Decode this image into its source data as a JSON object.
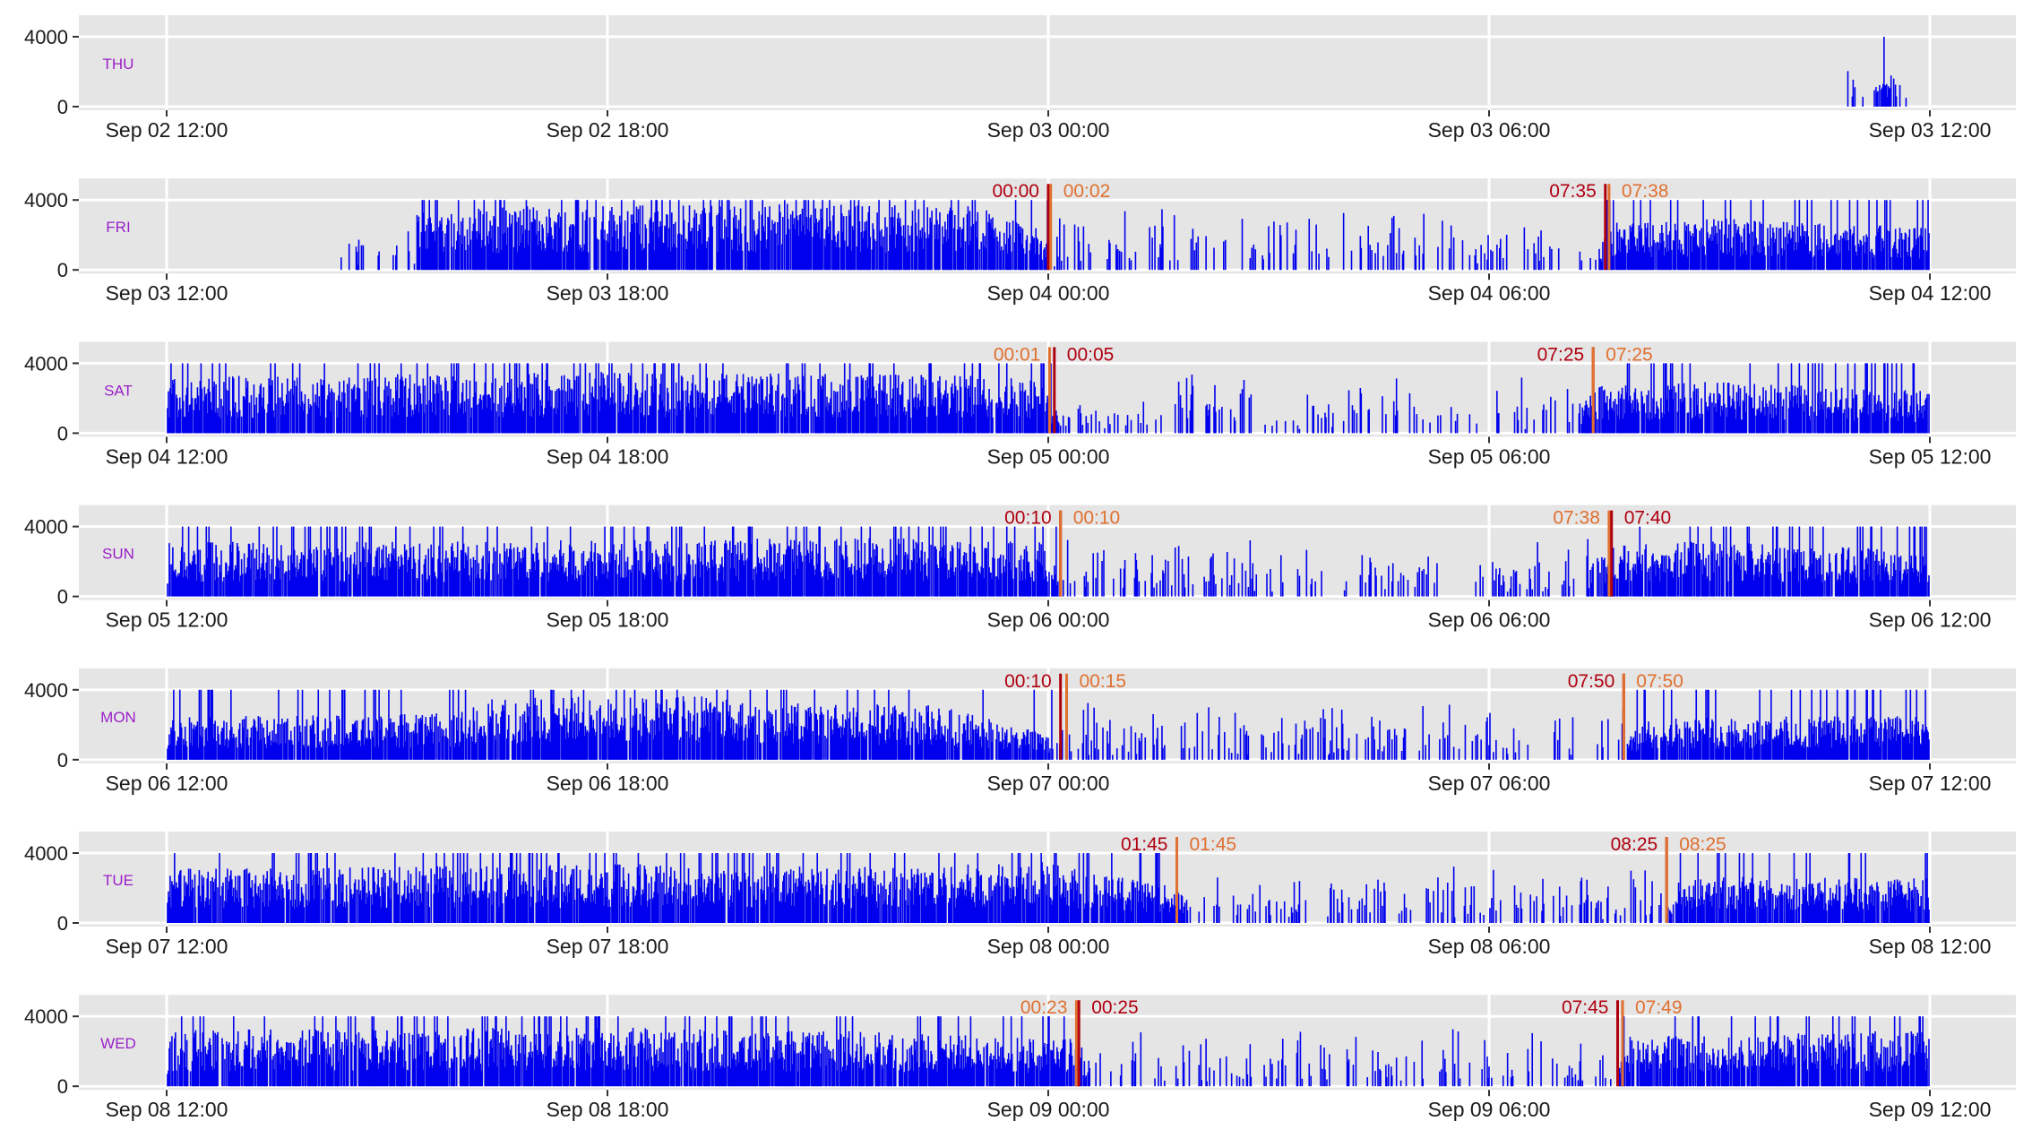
{
  "colors": {
    "bars": "#0000ee",
    "panel_bg": "#e5e5e5",
    "grid": "#ffffff",
    "day_label": "#9a1fc8",
    "marker_dark": "#b00010",
    "marker_light": "#e07030",
    "axis_text": "#1a1a1a"
  },
  "chart_data": {
    "type": "bar",
    "layout": "stacked small multiples, one panel per day, each panel spans 12:00 to 12:00 next day",
    "grid": true,
    "ylim": [
      0,
      4000
    ],
    "y_ticks": [
      0,
      4000
    ],
    "panels": [
      {
        "day": "THU",
        "x_ticks": [
          "Sep 02 12:00",
          "Sep 02 18:00",
          "Sep 03 00:00",
          "Sep 03 06:00",
          "Sep 03 12:00"
        ],
        "activity_profile": [
          [
            22.8,
            0
          ],
          [
            22.85,
            900
          ],
          [
            22.9,
            0
          ],
          [
            23.45,
            1600
          ],
          [
            23.5,
            0
          ],
          [
            23.5,
            1300
          ],
          [
            23.7,
            0
          ]
        ],
        "markers": []
      },
      {
        "day": "FRI",
        "x_ticks": [
          "Sep 03 12:00",
          "Sep 03 18:00",
          "Sep 04 00:00",
          "Sep 04 06:00",
          "Sep 04 12:00"
        ],
        "activity_profile": [
          [
            0,
            0
          ],
          [
            2.3,
            0
          ],
          [
            2.3,
            200
          ],
          [
            2.8,
            300
          ],
          [
            3.4,
            300
          ],
          [
            3.4,
            2600
          ],
          [
            6,
            2800
          ],
          [
            9,
            2800
          ],
          [
            10.8,
            2800
          ],
          [
            11.7,
            2300
          ],
          [
            12.1,
            700
          ],
          [
            16,
            500
          ],
          [
            19.4,
            500
          ],
          [
            19.7,
            2000
          ],
          [
            21,
            2200
          ],
          [
            24,
            1800
          ]
        ],
        "markers": [
          {
            "label": "00:00",
            "hour": 12.0,
            "color": "dark",
            "label_side": "left"
          },
          {
            "label": "00:02",
            "hour": 12.033,
            "color": "light",
            "label_side": "right"
          },
          {
            "label": "07:35",
            "hour": 19.583,
            "color": "dark",
            "label_side": "left"
          },
          {
            "label": "07:38",
            "hour": 19.633,
            "color": "light",
            "label_side": "right"
          }
        ]
      },
      {
        "day": "SAT",
        "x_ticks": [
          "Sep 04 12:00",
          "Sep 04 18:00",
          "Sep 05 00:00",
          "Sep 05 06:00",
          "Sep 05 12:00"
        ],
        "activity_profile": [
          [
            0,
            0
          ],
          [
            0.02,
            2400
          ],
          [
            6,
            2600
          ],
          [
            10,
            2500
          ],
          [
            11.8,
            2400
          ],
          [
            12.2,
            900
          ],
          [
            16,
            500
          ],
          [
            19.2,
            600
          ],
          [
            19.4,
            2000
          ],
          [
            21,
            2200
          ],
          [
            24,
            1800
          ]
        ],
        "markers": [
          {
            "label": "00:01",
            "hour": 12.017,
            "color": "light",
            "label_side": "left"
          },
          {
            "label": "00:05",
            "hour": 12.083,
            "color": "dark",
            "label_side": "right"
          },
          {
            "label": "07:25",
            "hour": 19.417,
            "color": "dark",
            "label_side": "left"
          },
          {
            "label": "07:25",
            "hour": 19.417,
            "color": "light",
            "label_side": "right"
          }
        ]
      },
      {
        "day": "SUN",
        "x_ticks": [
          "Sep 05 12:00",
          "Sep 05 18:00",
          "Sep 06 00:00",
          "Sep 06 06:00",
          "Sep 06 12:00"
        ],
        "activity_profile": [
          [
            0,
            0
          ],
          [
            0.02,
            2300
          ],
          [
            6,
            2400
          ],
          [
            10,
            2500
          ],
          [
            11.9,
            2400
          ],
          [
            12.2,
            800
          ],
          [
            16,
            600
          ],
          [
            19.3,
            600
          ],
          [
            19.5,
            2100
          ],
          [
            21,
            2400
          ],
          [
            24,
            1900
          ]
        ],
        "markers": [
          {
            "label": "00:10",
            "hour": 12.167,
            "color": "dark",
            "label_side": "left"
          },
          {
            "label": "00:10",
            "hour": 12.167,
            "color": "light",
            "label_side": "right"
          },
          {
            "label": "07:38",
            "hour": 19.633,
            "color": "light",
            "label_side": "left"
          },
          {
            "label": "07:40",
            "hour": 19.667,
            "color": "dark",
            "label_side": "right"
          }
        ]
      },
      {
        "day": "MON",
        "x_ticks": [
          "Sep 06 12:00",
          "Sep 06 18:00",
          "Sep 07 00:00",
          "Sep 07 06:00",
          "Sep 07 12:00"
        ],
        "activity_profile": [
          [
            0,
            0
          ],
          [
            0.02,
            1800
          ],
          [
            4,
            2000
          ],
          [
            4.5,
            2700
          ],
          [
            7.6,
            2700
          ],
          [
            8.5,
            2400
          ],
          [
            10.5,
            2300
          ],
          [
            12.2,
            900
          ],
          [
            16,
            700
          ],
          [
            19.8,
            700
          ],
          [
            20.2,
            1800
          ],
          [
            24,
            1900
          ]
        ],
        "markers": [
          {
            "label": "00:10",
            "hour": 12.167,
            "color": "dark",
            "label_side": "left"
          },
          {
            "label": "00:15",
            "hour": 12.25,
            "color": "light",
            "label_side": "right"
          },
          {
            "label": "07:50",
            "hour": 19.833,
            "color": "dark",
            "label_side": "left"
          },
          {
            "label": "07:50",
            "hour": 19.833,
            "color": "light",
            "label_side": "right"
          }
        ]
      },
      {
        "day": "TUE",
        "x_ticks": [
          "Sep 07 12:00",
          "Sep 07 18:00",
          "Sep 08 00:00",
          "Sep 08 06:00",
          "Sep 08 12:00"
        ],
        "activity_profile": [
          [
            0,
            0
          ],
          [
            0.02,
            2300
          ],
          [
            6,
            2500
          ],
          [
            10,
            2400
          ],
          [
            12,
            2600
          ],
          [
            13.75,
            1500
          ],
          [
            14,
            700
          ],
          [
            17,
            500
          ],
          [
            20.4,
            600
          ],
          [
            20.6,
            2000
          ],
          [
            24,
            1900
          ]
        ],
        "markers": [
          {
            "label": "01:45",
            "hour": 13.75,
            "color": "dark",
            "label_side": "left"
          },
          {
            "label": "01:45",
            "hour": 13.75,
            "color": "light",
            "label_side": "right"
          },
          {
            "label": "08:25",
            "hour": 20.417,
            "color": "dark",
            "label_side": "left"
          },
          {
            "label": "08:25",
            "hour": 20.417,
            "color": "light",
            "label_side": "right"
          }
        ]
      },
      {
        "day": "WED",
        "x_ticks": [
          "Sep 08 12:00",
          "Sep 08 18:00",
          "Sep 09 00:00",
          "Sep 09 06:00",
          "Sep 09 12:00"
        ],
        "activity_profile": [
          [
            0,
            0
          ],
          [
            0.02,
            2400
          ],
          [
            6,
            2500
          ],
          [
            10,
            2300
          ],
          [
            12.4,
            2000
          ],
          [
            12.6,
            800
          ],
          [
            16,
            500
          ],
          [
            19.7,
            600
          ],
          [
            19.9,
            2100
          ],
          [
            24,
            2400
          ]
        ],
        "markers": [
          {
            "label": "00:23",
            "hour": 12.383,
            "color": "light",
            "label_side": "left"
          },
          {
            "label": "00:25",
            "hour": 12.417,
            "color": "dark",
            "label_side": "right"
          },
          {
            "label": "07:45",
            "hour": 19.75,
            "color": "dark",
            "label_side": "left"
          },
          {
            "label": "07:49",
            "hour": 19.817,
            "color": "light",
            "label_side": "right"
          }
        ]
      }
    ]
  }
}
